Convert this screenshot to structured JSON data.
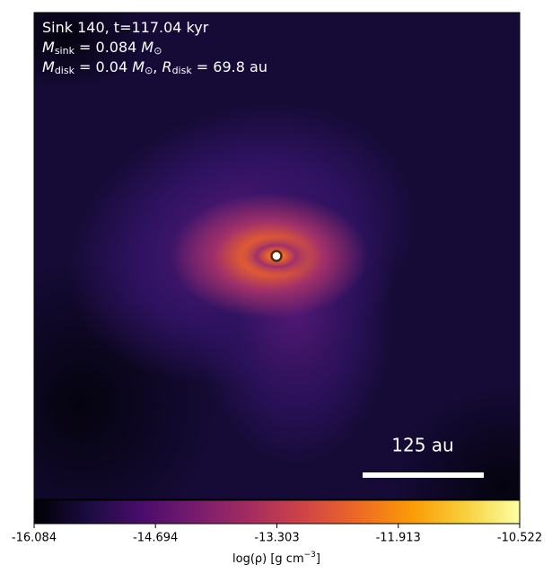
{
  "chart_data": {
    "type": "image",
    "annotation_lines": [
      [
        {
          "t": "Sink 140, t=117.04 kyr"
        }
      ],
      [
        {
          "t": "M",
          "italic": true
        },
        {
          "t": "sink",
          "sub": true
        },
        {
          "t": " = 0.084 "
        },
        {
          "t": "M",
          "italic": true
        },
        {
          "t": "⊙",
          "sub": true
        }
      ],
      [
        {
          "t": "M",
          "italic": true
        },
        {
          "t": "disk",
          "sub": true
        },
        {
          "t": " = 0.04 "
        },
        {
          "t": "M",
          "italic": true
        },
        {
          "t": "⊙",
          "sub": true
        },
        {
          "t": ", "
        },
        {
          "t": "R",
          "italic": true
        },
        {
          "t": "disk",
          "sub": true
        },
        {
          "t": " = 69.8 au"
        }
      ]
    ],
    "scale_bar_label": "125 au",
    "colormap": "inferno",
    "colorbar": {
      "label": "log(ρ) [g cm",
      "label_sup": "−3",
      "label_end": "]",
      "lim": [
        -16.084,
        -10.522
      ],
      "ticks": [
        -16.084,
        -14.694,
        -13.303,
        -11.913,
        -10.522
      ]
    }
  }
}
